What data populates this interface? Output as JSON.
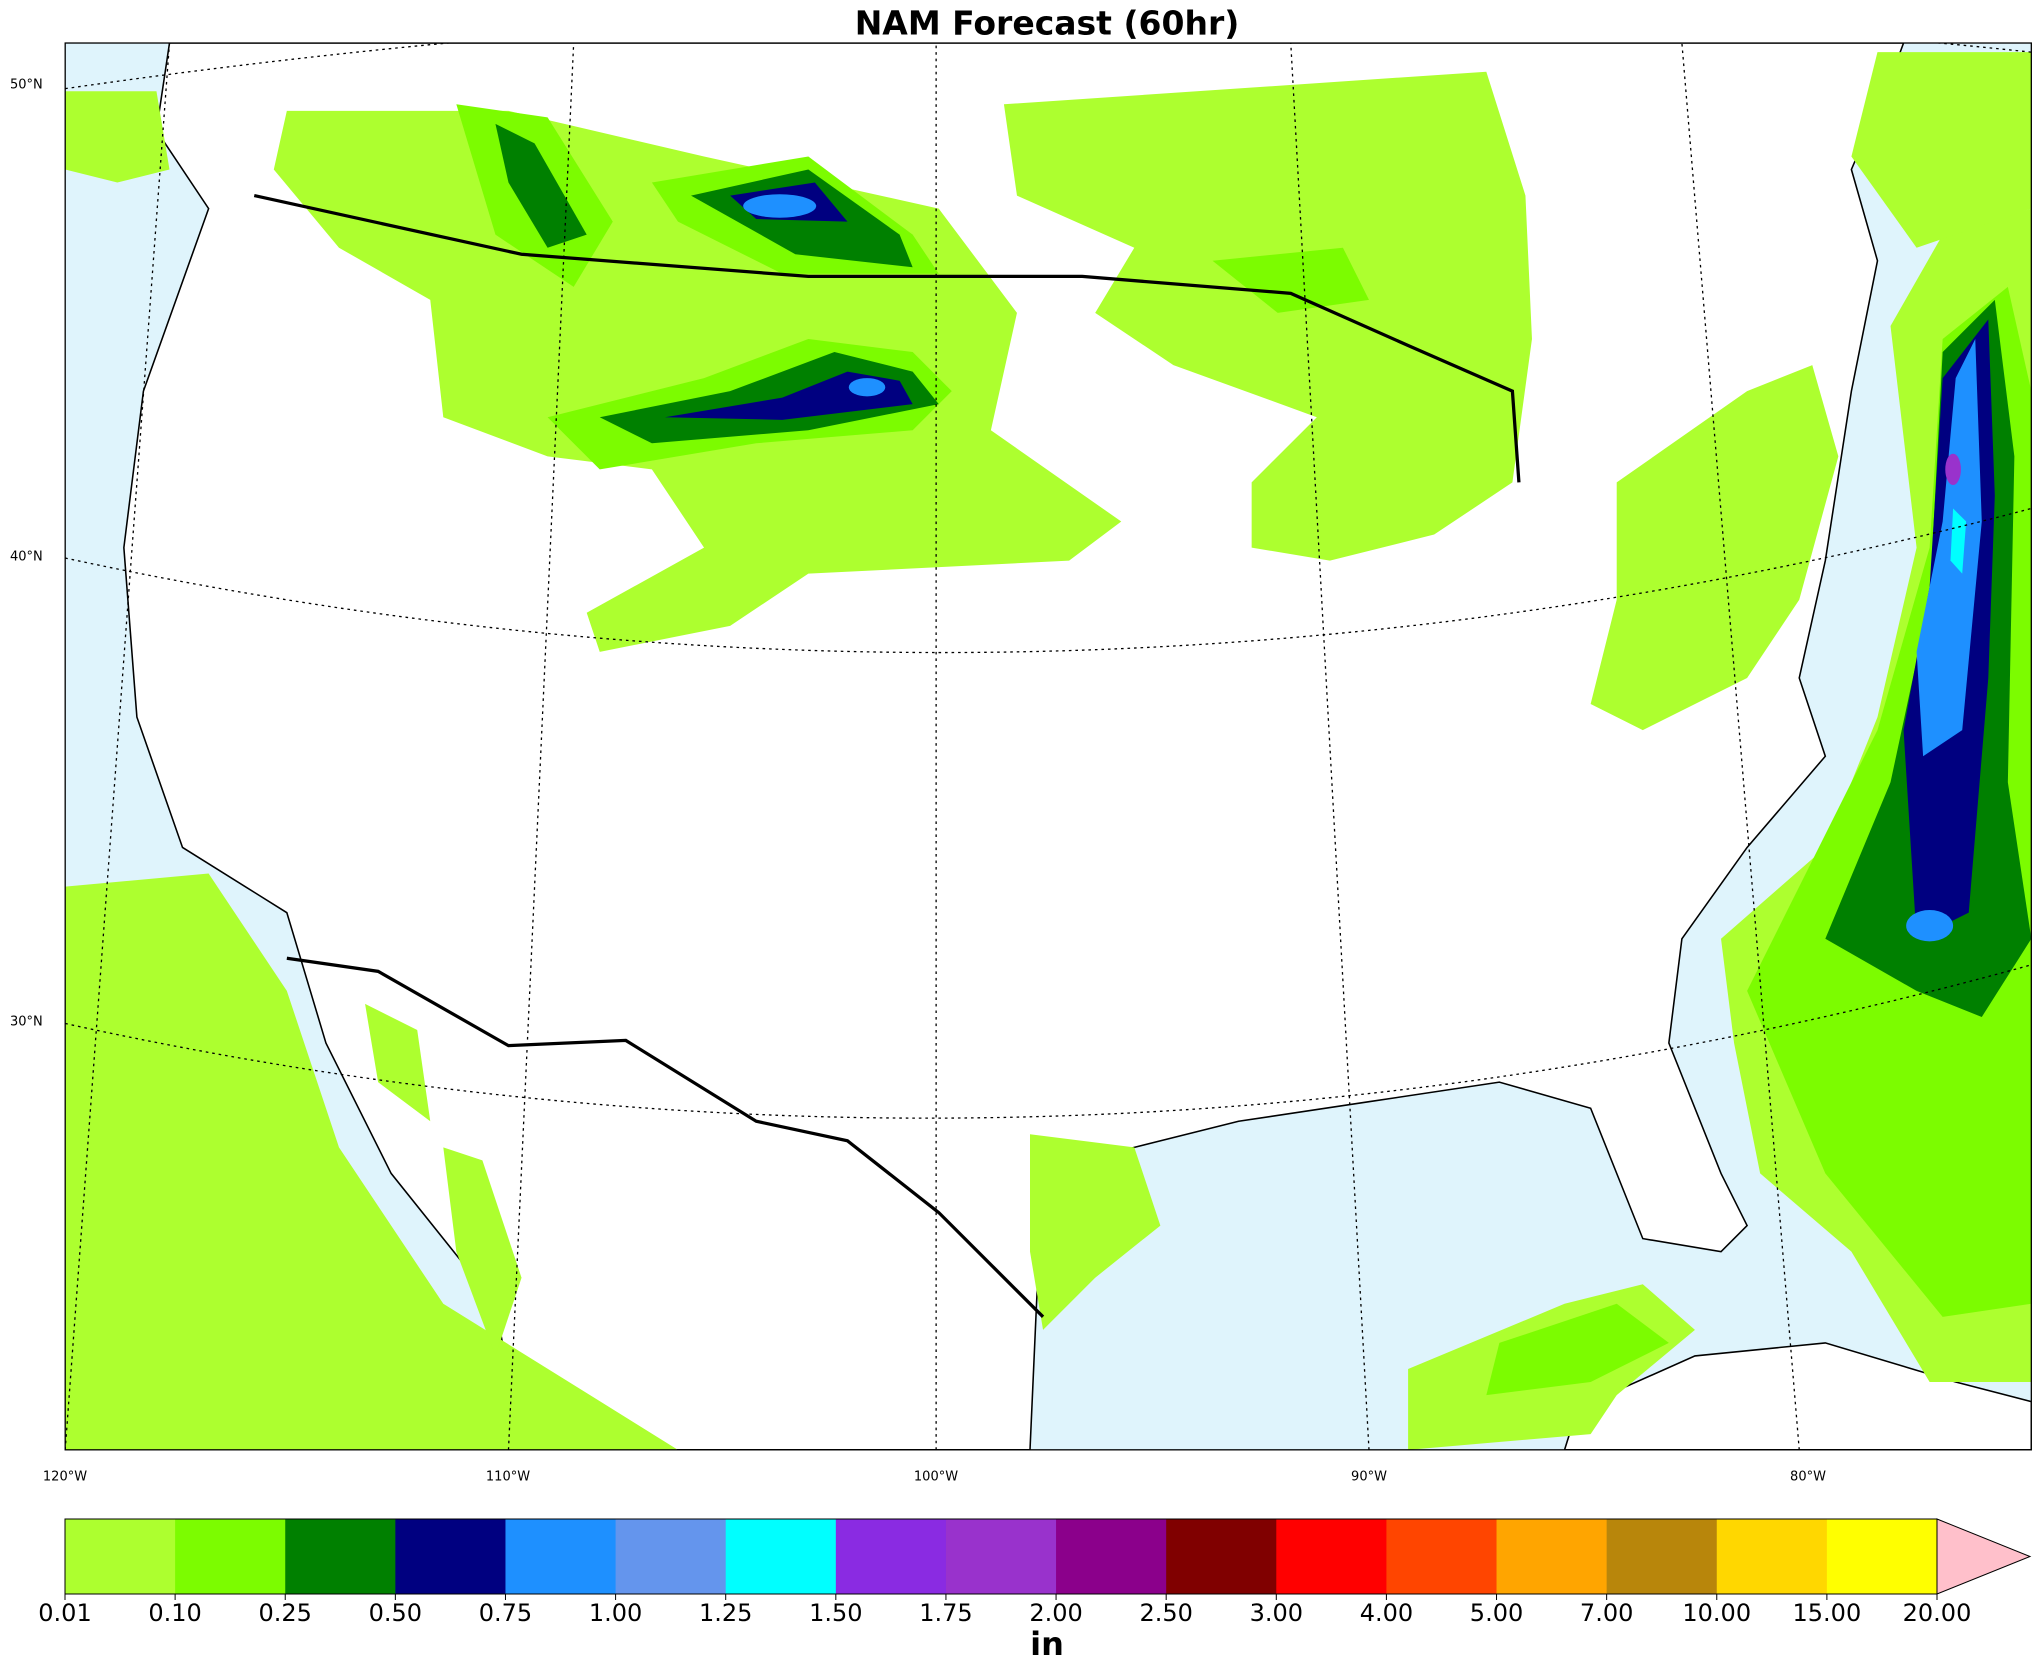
{
  "title": "NAM Forecast (60hr)",
  "lat_labels": [
    "50°N",
    "40°N",
    "30°N"
  ],
  "lon_labels": [
    "120°W",
    "110°W",
    "100°W",
    "90°W",
    "80°W"
  ],
  "colorbar": {
    "colors": [
      "#adff2f",
      "#7cfc00",
      "#008000",
      "#000080",
      "#1e90ff",
      "#6495ed",
      "#00ffff",
      "#8a2be2",
      "#9932cc",
      "#8b008b",
      "#800000",
      "#ff0000",
      "#ff4500",
      "#ffa500",
      "#b8860b",
      "#ffd700",
      "#ffff00"
    ],
    "extend_color": "#ffc0cb",
    "levels": [
      "0.01",
      "0.10",
      "0.25",
      "0.50",
      "0.75",
      "1.00",
      "1.25",
      "1.50",
      "1.75",
      "2.00",
      "2.50",
      "3.00",
      "4.00",
      "5.00",
      "7.00",
      "10.00",
      "15.00",
      "20.00"
    ],
    "unit": "in"
  }
}
